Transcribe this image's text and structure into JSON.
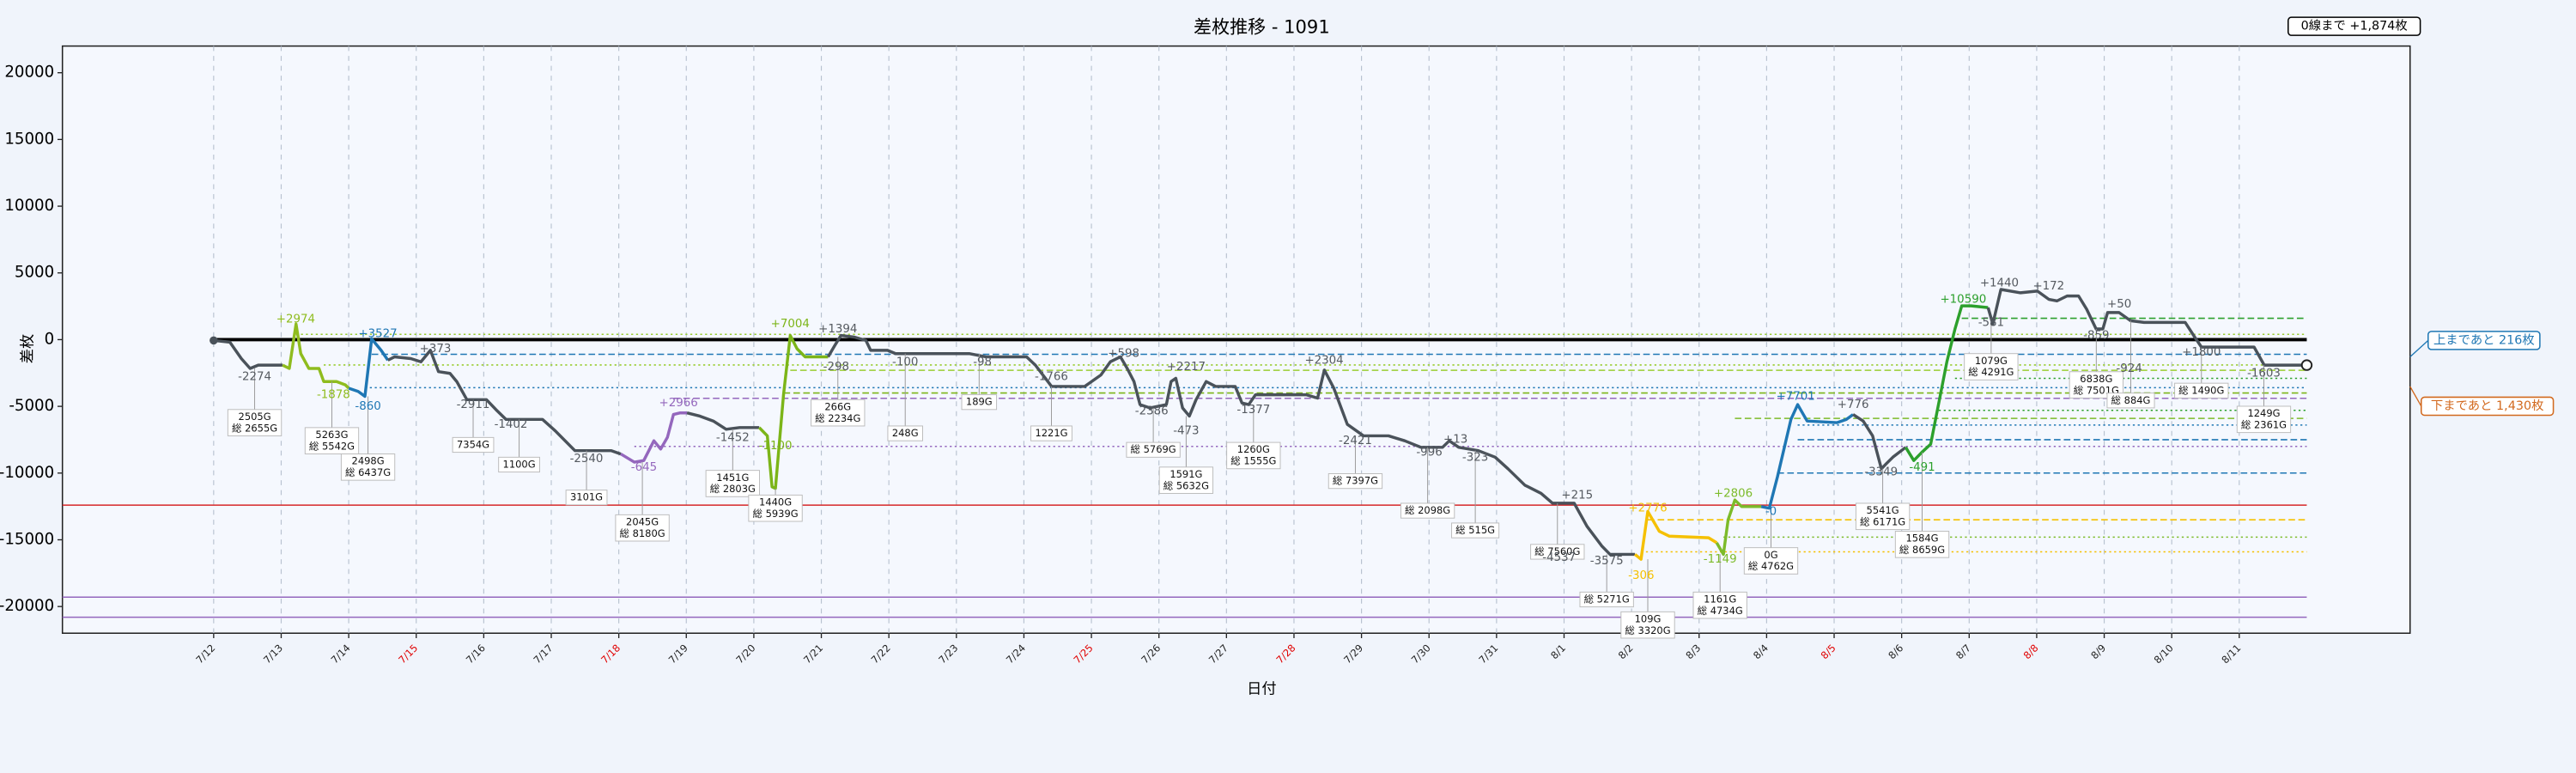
{
  "chart_data": {
    "type": "line",
    "title": "差枚推移 - 1091",
    "x_label": "日付",
    "y_label": "差枚",
    "xlim": [
      -2.24,
      32.53
    ],
    "ylim": [
      -22000,
      22000
    ],
    "yticks": [
      -20000,
      -15000,
      -10000,
      -5000,
      0,
      5000,
      10000,
      15000,
      20000
    ],
    "xticks": [
      {
        "value": 0,
        "label": "7/12"
      },
      {
        "value": 1,
        "label": "7/13"
      },
      {
        "value": 2,
        "label": "7/14"
      },
      {
        "value": 3,
        "label": "7/15",
        "color": "#e00000"
      },
      {
        "value": 4,
        "label": "7/16"
      },
      {
        "value": 5,
        "label": "7/17"
      },
      {
        "value": 6,
        "label": "7/18",
        "color": "#e00000"
      },
      {
        "value": 7,
        "label": "7/19"
      },
      {
        "value": 8,
        "label": "7/20"
      },
      {
        "value": 9,
        "label": "7/21"
      },
      {
        "value": 10,
        "label": "7/22"
      },
      {
        "value": 11,
        "label": "7/23"
      },
      {
        "value": 12,
        "label": "7/24"
      },
      {
        "value": 13,
        "label": "7/25",
        "color": "#e00000"
      },
      {
        "value": 14,
        "label": "7/26"
      },
      {
        "value": 15,
        "label": "7/27"
      },
      {
        "value": 16,
        "label": "7/28",
        "color": "#e00000"
      },
      {
        "value": 17,
        "label": "7/29"
      },
      {
        "value": 18,
        "label": "7/30"
      },
      {
        "value": 19,
        "label": "7/31"
      },
      {
        "value": 20,
        "label": "8/1"
      },
      {
        "value": 21,
        "label": "8/2"
      },
      {
        "value": 22,
        "label": "8/3"
      },
      {
        "value": 23,
        "label": "8/4"
      },
      {
        "value": 24,
        "label": "8/5",
        "color": "#e00000"
      },
      {
        "value": 25,
        "label": "8/6"
      },
      {
        "value": 26,
        "label": "8/7"
      },
      {
        "value": 27,
        "label": "8/8",
        "color": "#e00000"
      },
      {
        "value": 28,
        "label": "8/9"
      },
      {
        "value": 29,
        "label": "8/10"
      },
      {
        "value": 30,
        "label": "8/11"
      }
    ],
    "grid": true,
    "series": [
      {
        "color": "#4a525a",
        "x": [
          0,
          0.24,
          0.41,
          0.54,
          0.66,
          1.02
        ],
        "values": [
          -60,
          -190,
          -1420,
          -2160,
          -1910,
          -1910
        ]
      },
      {
        "color": "#8fbc1e",
        "x": [
          1.02,
          1.12,
          1.22,
          1.29,
          1.41,
          1.56,
          1.63,
          1.82,
          1.95,
          2.0
        ],
        "values": [
          -1910,
          -2160,
          1170,
          -1050,
          -2160,
          -2160,
          -3140,
          -3140,
          -3390,
          -3640
        ]
      },
      {
        "color": "#1f77b4",
        "x": [
          2.0,
          2.14,
          2.24,
          2.34,
          2.48,
          2.58
        ],
        "values": [
          -3640,
          -3880,
          -4250,
          60,
          -800,
          -1540
        ]
      },
      {
        "color": "#4a525a",
        "x": [
          2.58,
          2.68,
          2.92,
          3.07,
          3.21,
          3.33,
          3.5,
          3.6,
          3.75,
          4.04,
          4.18,
          4.33,
          4.87,
          5.06,
          5.35,
          5.89,
          6.03
        ],
        "values": [
          -1540,
          -1290,
          -1420,
          -1660,
          -800,
          -2400,
          -2530,
          -3140,
          -4500,
          -4500,
          -5240,
          -5980,
          -5980,
          -6840,
          -8320,
          -8320,
          -8570
        ]
      },
      {
        "color": "#9467bd",
        "x": [
          6.03,
          6.23,
          6.37,
          6.52,
          6.62,
          6.72,
          6.81,
          6.91,
          7.01
        ],
        "values": [
          -8570,
          -9180,
          -9060,
          -7580,
          -8200,
          -7330,
          -5610,
          -5490,
          -5490
        ]
      },
      {
        "color": "#4a525a",
        "x": [
          7.01,
          7.2,
          7.4,
          7.59,
          7.79,
          8.08
        ],
        "values": [
          -5490,
          -5730,
          -6100,
          -6720,
          -6590,
          -6590
        ]
      },
      {
        "color": "#7cb518",
        "x": [
          8.08,
          8.2,
          8.27,
          8.32,
          8.44,
          8.54,
          8.64,
          8.76,
          9.1
        ],
        "values": [
          -6590,
          -7210,
          -11030,
          -11150,
          -4130,
          310,
          -680,
          -1290,
          -1290
        ]
      },
      {
        "color": "#4a525a",
        "x": [
          9.1,
          9.2,
          9.29,
          9.49,
          9.66,
          9.73,
          9.98,
          10.1,
          10.46,
          11.19,
          11.44,
          12.04,
          12.17,
          12.41,
          12.9,
          13.14,
          13.28,
          13.43,
          13.53,
          13.63,
          13.72,
          13.87,
          14.11,
          14.18,
          14.25,
          14.35,
          14.45,
          14.55,
          14.7,
          14.84,
          15.13,
          15.23,
          15.33,
          15.43,
          15.57,
          16.18,
          16.35,
          16.45,
          16.59,
          16.79,
          17.03,
          17.4,
          17.64,
          17.88,
          18.2,
          18.3,
          18.44,
          18.73,
          18.98,
          19.17,
          19.42,
          19.66,
          19.83,
          20.15,
          20.34,
          20.56,
          20.68,
          21.05
        ],
        "values": [
          -1290,
          -430,
          310,
          190,
          -60,
          -800,
          -800,
          -1050,
          -1050,
          -1050,
          -1290,
          -1290,
          -1910,
          -3510,
          -3510,
          -2650,
          -1660,
          -1290,
          -2160,
          -3140,
          -4870,
          -5120,
          -4870,
          -3140,
          -2900,
          -5120,
          -5730,
          -4500,
          -3140,
          -3510,
          -3510,
          -4750,
          -4870,
          -4130,
          -4130,
          -4130,
          -4380,
          -2280,
          -3640,
          -6350,
          -7210,
          -7210,
          -7580,
          -8070,
          -8070,
          -7580,
          -8070,
          -8320,
          -8810,
          -9680,
          -10910,
          -11520,
          -12260,
          -12260,
          -13990,
          -15470,
          -16090,
          -16090
        ]
      },
      {
        "color": "#f5c000",
        "x": [
          21.05,
          21.14,
          21.24,
          21.41,
          21.56,
          22.14,
          22.26
        ],
        "values": [
          -16090,
          -16460,
          -12880,
          -14360,
          -14730,
          -14850,
          -15220
        ]
      },
      {
        "color": "#7cbb2a",
        "x": [
          22.26,
          22.36,
          22.43,
          22.53,
          22.63,
          22.92
        ],
        "values": [
          -15220,
          -16090,
          -13500,
          -12020,
          -12510,
          -12510
        ]
      },
      {
        "color": "#1f77b4",
        "x": [
          22.92,
          23.04,
          23.16,
          23.36,
          23.46,
          23.6,
          24.04,
          24.18,
          24.28
        ],
        "values": [
          -12510,
          -12630,
          -10290,
          -5980,
          -4870,
          -6100,
          -6220,
          -5980,
          -5610
        ]
      },
      {
        "color": "#4a525a",
        "x": [
          24.28,
          24.43,
          24.57,
          24.7,
          24.77,
          24.87,
          25.06
        ],
        "values": [
          -5610,
          -6100,
          -7210,
          -9680,
          -9310,
          -8810,
          -8070
        ]
      },
      {
        "color": "#2ca02c",
        "x": [
          25.06,
          25.18,
          25.3,
          25.43,
          25.55,
          25.67,
          25.79,
          25.89,
          26.03,
          26.28
        ],
        "values": [
          -8070,
          -9060,
          -8440,
          -7830,
          -4750,
          -1660,
          800,
          2530,
          2530,
          2400
        ]
      },
      {
        "color": "#4a525a",
        "x": [
          26.28,
          26.35,
          26.47,
          26.76,
          27.01,
          27.18,
          27.3,
          27.45,
          27.62,
          27.74,
          27.88,
          27.98,
          28.05,
          28.22,
          28.39,
          28.59,
          29.2,
          29.34,
          29.44,
          30.22,
          30.37,
          30.66,
          31.0
        ],
        "values": [
          2400,
          1170,
          3760,
          3510,
          3640,
          3020,
          2900,
          3270,
          3270,
          2280,
          800,
          800,
          2030,
          2030,
          1420,
          1290,
          1290,
          190,
          -560,
          -560,
          -1910,
          -1910,
          -1910
        ]
      }
    ],
    "reference_lines": [
      {
        "value": 1600,
        "color": "#2ca02c",
        "style": "dashed",
        "from": 25.89
      },
      {
        "value": 400,
        "color": "#9acd32",
        "style": "dotted",
        "from": 1.22
      },
      {
        "value": -1100,
        "color": "#1f77b4",
        "style": "dashed",
        "from": 2.34
      },
      {
        "value": -1900,
        "color": "#9acd32",
        "style": "dotted",
        "from": 1.63
      },
      {
        "value": -2300,
        "color": "#9acd32",
        "style": "dashed",
        "from": 8.54
      },
      {
        "value": -2900,
        "color": "#2ca02c",
        "style": "dotted",
        "from": 25.79
      },
      {
        "value": -3600,
        "color": "#1f77b4",
        "style": "dotted",
        "from": 2.24
      },
      {
        "value": -4000,
        "color": "#7cb518",
        "style": "dashed",
        "from": 8.44
      },
      {
        "value": -4400,
        "color": "#9467bd",
        "style": "dashed",
        "from": 6.81
      },
      {
        "value": -5300,
        "color": "#2ca02c",
        "style": "dotted",
        "from": 25.55
      },
      {
        "value": -5900,
        "color": "#7cbb2a",
        "style": "dashed",
        "from": 22.53
      },
      {
        "value": -6400,
        "color": "#1f77b4",
        "style": "dotted",
        "from": 23.46
      },
      {
        "value": -7500,
        "color": "#1f77b4",
        "style": "dashed",
        "from": 23.46
      },
      {
        "value": -8000,
        "color": "#9467bd",
        "style": "dotted",
        "from": 6.23
      },
      {
        "value": -10000,
        "color": "#1f77b4",
        "style": "dashed",
        "from": 23.16
      },
      {
        "value": -12400,
        "color": "#d62728",
        "style": "solid",
        "from": -2.24
      },
      {
        "value": -13500,
        "color": "#f5c000",
        "style": "dashed",
        "from": 21.24
      },
      {
        "value": -14800,
        "color": "#7cbb2a",
        "style": "dotted",
        "from": 22.36
      },
      {
        "value": -15900,
        "color": "#f5c000",
        "style": "dotted",
        "from": 21.14
      },
      {
        "value": -19300,
        "color": "#9467bd",
        "style": "solid",
        "from": -2.24
      },
      {
        "value": -20800,
        "color": "#9467bd",
        "style": "solid",
        "from": -2.24
      },
      {
        "value": 0,
        "color": "#000000",
        "style": "solid",
        "from": 0,
        "width": 2
      }
    ],
    "day_labels": [
      {
        "text": "-2274",
        "color": "#555a60"
      },
      {
        "text": "+2974",
        "color": "#8fbc1e"
      },
      {
        "text": "-1878",
        "color": "#8fbc1e"
      },
      {
        "text": "+3527",
        "color": "#1f77b4"
      },
      {
        "text": "-860",
        "color": "#1f77b4"
      },
      {
        "text": "+373",
        "color": "#555a60"
      },
      {
        "text": "-2911",
        "color": "#555a60"
      },
      {
        "text": "-1402",
        "color": "#555a60"
      },
      {
        "text": "-2540",
        "color": "#555a60"
      },
      {
        "text": "+2966",
        "color": "#9467bd"
      },
      {
        "text": "-645",
        "color": "#9467bd"
      },
      {
        "text": "-1452",
        "color": "#555a60"
      },
      {
        "text": "-1100",
        "color": "#7cb518"
      },
      {
        "text": "+7004",
        "color": "#7cb518"
      },
      {
        "text": "+1394",
        "color": "#555a60"
      },
      {
        "text": "-298",
        "color": "#555a60"
      },
      {
        "text": "-100",
        "color": "#555a60"
      },
      {
        "text": "-98",
        "color": "#555a60"
      },
      {
        "text": "-1766",
        "color": "#555a60"
      },
      {
        "text": "+598",
        "color": "#555a60"
      },
      {
        "text": "-2386",
        "color": "#555a60"
      },
      {
        "text": "+2217",
        "color": "#555a60"
      },
      {
        "text": "-473",
        "color": "#555a60"
      },
      {
        "text": "-1377",
        "color": "#555a60"
      },
      {
        "text": "+2304",
        "color": "#555a60"
      },
      {
        "text": "-2421",
        "color": "#555a60"
      },
      {
        "text": "-996",
        "color": "#555a60"
      },
      {
        "text": "+13",
        "color": "#555a60"
      },
      {
        "text": "-323",
        "color": "#555a60"
      },
      {
        "text": "+215",
        "color": "#555a60"
      },
      {
        "text": "-4537",
        "color": "#555a60"
      },
      {
        "text": "-3575",
        "color": "#555a60"
      },
      {
        "text": "+2776",
        "color": "#f5c000"
      },
      {
        "text": "-306",
        "color": "#f5c000"
      },
      {
        "text": "+2806",
        "color": "#7cbb2a"
      },
      {
        "text": "-1149",
        "color": "#7cbb2a"
      },
      {
        "text": "-0",
        "color": "#1f77b4"
      },
      {
        "text": "+7701",
        "color": "#1f77b4"
      },
      {
        "text": "+776",
        "color": "#555a60"
      },
      {
        "text": "-3349",
        "color": "#555a60"
      },
      {
        "text": "-491",
        "color": "#2ca02c"
      },
      {
        "text": "+10590",
        "color": "#2ca02c"
      },
      {
        "text": "-581",
        "color": "#555a60"
      },
      {
        "text": "+1440",
        "color": "#555a60"
      },
      {
        "text": "+172",
        "color": "#555a60"
      },
      {
        "text": "-859",
        "color": "#555a60"
      },
      {
        "text": "+50",
        "color": "#555a60"
      },
      {
        "text": "-924",
        "color": "#555a60"
      },
      {
        "text": "+1800",
        "color": "#555a60"
      },
      {
        "text": "-1603",
        "color": "#555a60"
      }
    ],
    "game_boxes": [
      {
        "lines": [
          "2505G",
          "総 2655G"
        ]
      },
      {
        "lines": [
          "5263G",
          "総 5542G"
        ]
      },
      {
        "lines": [
          "2498G",
          "総 6437G"
        ]
      },
      {
        "lines": [
          "7354G"
        ]
      },
      {
        "lines": [
          "1100G"
        ]
      },
      {
        "lines": [
          "3101G"
        ]
      },
      {
        "lines": [
          "2045G",
          "総 8180G"
        ]
      },
      {
        "lines": [
          "1451G",
          "総 2803G"
        ]
      },
      {
        "lines": [
          "1440G",
          "総 5939G"
        ]
      },
      {
        "lines": [
          "266G",
          "総 2234G"
        ]
      },
      {
        "lines": [
          "248G"
        ]
      },
      {
        "lines": [
          "189G"
        ]
      },
      {
        "lines": [
          "1221G"
        ]
      },
      {
        "lines": [
          "総 5769G"
        ]
      },
      {
        "lines": [
          "1591G",
          "総 5632G"
        ]
      },
      {
        "lines": [
          "1260G",
          "総 1555G"
        ]
      },
      {
        "lines": [
          "総 7397G"
        ]
      },
      {
        "lines": [
          "総 2098G"
        ]
      },
      {
        "lines": [
          "総 515G"
        ]
      },
      {
        "lines": [
          "総 7560G"
        ]
      },
      {
        "lines": [
          "総 5271G"
        ]
      },
      {
        "lines": [
          "109G",
          "総 3320G"
        ]
      },
      {
        "lines": [
          "1161G",
          "総 4734G"
        ]
      },
      {
        "lines": [
          "0G",
          "総 4762G"
        ]
      },
      {
        "lines": [
          "5541G",
          "総 6171G"
        ]
      },
      {
        "lines": [
          "1584G",
          "総 8659G"
        ]
      },
      {
        "lines": [
          "1079G",
          "総 4291G"
        ]
      },
      {
        "lines": [
          "6838G",
          "総 7501G"
        ]
      },
      {
        "lines": [
          "総 884G"
        ]
      },
      {
        "lines": [
          "総 1490G"
        ]
      },
      {
        "lines": [
          "1249G",
          "総 2361G"
        ]
      }
    ],
    "notes": [
      {
        "text": "0線まで +1,874枚",
        "color": "#000000"
      },
      {
        "text": "上まであと 216枚",
        "color": "#1f77b4"
      },
      {
        "text": "下まであと 1,430枚",
        "color": "#d2691e"
      }
    ]
  }
}
